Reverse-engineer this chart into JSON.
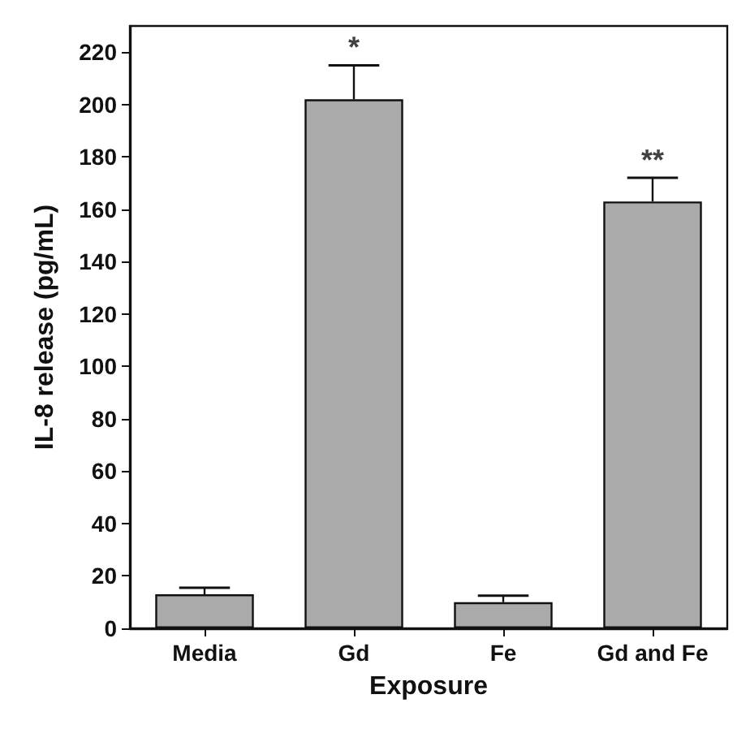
{
  "chart_data": {
    "type": "bar",
    "xlabel": "Exposure",
    "ylabel": "IL-8 release (pg/mL)",
    "categories": [
      "Media",
      "Gd",
      "Fe",
      "Gd and Fe"
    ],
    "values": [
      13,
      202,
      10,
      163
    ],
    "errors": [
      2.5,
      13,
      2.5,
      9
    ],
    "color": "#aaaaaa",
    "ylim": [
      0,
      230
    ],
    "yticks": [
      0,
      20,
      40,
      60,
      80,
      100,
      120,
      140,
      160,
      180,
      200,
      220
    ],
    "grid": false,
    "annotations": [
      {
        "text": "*",
        "x": "Gd",
        "y": 215
      },
      {
        "text": "**",
        "x": "Gd and Fe",
        "y": 172
      }
    ]
  }
}
